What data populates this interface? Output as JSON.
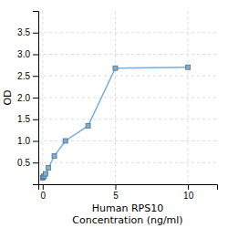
{
  "chart_data": {
    "type": "line",
    "xlabel": [
      "Human RPS10",
      "Concentration (ng/ml)"
    ],
    "ylabel": "OD",
    "x": [
      0.0,
      0.05,
      0.1,
      0.2,
      0.4,
      0.8,
      1.5625,
      3.125,
      5,
      10
    ],
    "values": [
      0.15,
      0.17,
      0.19,
      0.24,
      0.38,
      0.65,
      1.0,
      1.35,
      2.68,
      2.7
    ],
    "color": "#7aaed6",
    "marker": "square",
    "xlim": [
      -0.3,
      12
    ],
    "ylim": [
      0,
      4.0
    ],
    "xticks": [
      0,
      5,
      10
    ],
    "yticks": [
      0.5,
      {
        "value": 1.0,
        "label": "1.0"
      },
      1.5,
      {
        "value": 2.0,
        "label": "2.0"
      },
      2.5,
      {
        "value": 3.0,
        "label": "3.0"
      },
      3.5
    ],
    "grid": true
  }
}
